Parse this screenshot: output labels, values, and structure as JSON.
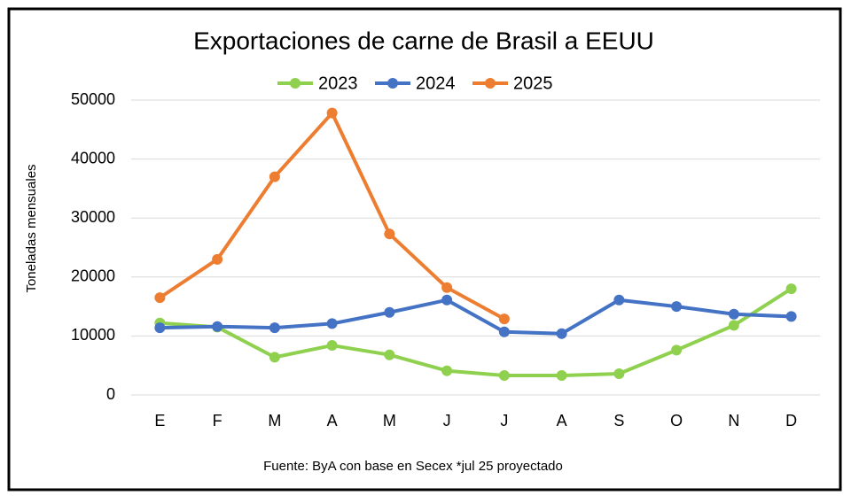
{
  "chart_data": {
    "type": "line",
    "title": "Exportaciones de carne de Brasil a EEUU",
    "y_label": "Toneladas mensuales",
    "source": "Fuente: ByA con base en Secex *jul 25 proyectado",
    "categories": [
      "E",
      "F",
      "M",
      "A",
      "M",
      "J",
      "J",
      "A",
      "S",
      "O",
      "N",
      "D"
    ],
    "series": [
      {
        "name": "2023",
        "color": "#8fd14f",
        "values": [
          12200,
          11500,
          6400,
          8400,
          6800,
          4100,
          3300,
          3300,
          3600,
          7600,
          11800,
          18000
        ]
      },
      {
        "name": "2024",
        "color": "#4472c4",
        "values": [
          11400,
          11600,
          11400,
          12100,
          14000,
          16100,
          10700,
          10400,
          16100,
          15000,
          13700,
          13300
        ]
      },
      {
        "name": "2025",
        "color": "#ed7d31",
        "values": [
          16500,
          23000,
          37000,
          47800,
          27300,
          18200,
          12900,
          null,
          null,
          null,
          null,
          null
        ]
      }
    ],
    "ylim": [
      0,
      50000
    ],
    "yticks": [
      0,
      10000,
      20000,
      30000,
      40000,
      50000
    ],
    "grid": true,
    "legend": "top"
  }
}
